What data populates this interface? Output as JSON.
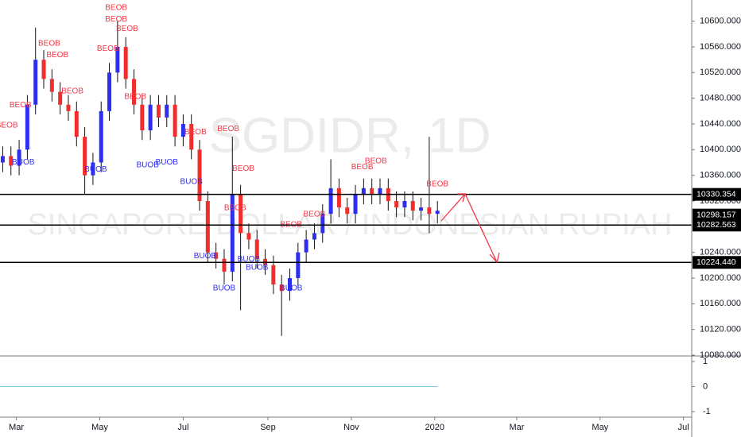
{
  "chart_data": {
    "type": "ohlc",
    "title": "SGDIDR, 1D",
    "subtitle": "SINGAPORE DOLLAR / INDONESIAN RUPIAH",
    "up_color": "#2e2ef0",
    "down_color": "#f02e2e",
    "x": [
      -10,
      -4,
      2,
      8,
      14,
      20,
      26,
      32,
      38,
      44,
      50,
      56,
      62,
      68,
      74,
      80,
      86,
      92,
      98,
      104,
      110,
      116,
      122,
      128,
      134,
      140,
      146,
      152,
      158,
      164,
      170,
      176,
      182,
      188,
      194,
      200,
      206,
      212,
      218,
      224,
      230,
      236,
      242,
      248,
      254,
      260,
      266,
      272,
      278,
      284,
      290,
      296,
      302,
      308
    ],
    "open": [
      10380,
      10390,
      10375,
      10400,
      10470,
      10540,
      10510,
      10490,
      10470,
      10460,
      10420,
      10360,
      10380,
      10460,
      10520,
      10560,
      10510,
      10470,
      10430,
      10470,
      10450,
      10470,
      10420,
      10440,
      10400,
      10320,
      10240,
      10230,
      10210,
      10330,
      10270,
      10260,
      10230,
      10220,
      10190,
      10180,
      10200,
      10240,
      10260,
      10270,
      10300,
      10340,
      10310,
      10300,
      10330,
      10340,
      10330,
      10340,
      10320,
      10310,
      10320,
      10305,
      10310,
      10300
    ],
    "high": [
      10405,
      10405,
      10415,
      10485,
      10590,
      10555,
      10525,
      10505,
      10485,
      10475,
      10435,
      10395,
      10475,
      10535,
      10600,
      10575,
      10525,
      10485,
      10485,
      10485,
      10485,
      10485,
      10455,
      10455,
      10415,
      10335,
      10255,
      10245,
      10420,
      10345,
      10285,
      10275,
      10245,
      10235,
      10205,
      10215,
      10255,
      10275,
      10285,
      10315,
      10385,
      10355,
      10325,
      10345,
      10355,
      10355,
      10355,
      10355,
      10335,
      10335,
      10335,
      10325,
      10420,
      10320
    ],
    "low": [
      10365,
      10360,
      10360,
      10385,
      10455,
      10495,
      10475,
      10455,
      10445,
      10405,
      10330,
      10345,
      10365,
      10445,
      10505,
      10495,
      10455,
      10415,
      10415,
      10435,
      10435,
      10405,
      10405,
      10385,
      10305,
      10225,
      10215,
      10190,
      10195,
      10150,
      10245,
      10215,
      10205,
      10175,
      10110,
      10165,
      10185,
      10225,
      10245,
      10255,
      10285,
      10295,
      10285,
      10285,
      10315,
      10315,
      10315,
      10305,
      10295,
      10295,
      10290,
      10290,
      10270,
      10285
    ],
    "close": [
      10390,
      10375,
      10400,
      10470,
      10540,
      10510,
      10490,
      10470,
      10460,
      10420,
      10360,
      10380,
      10460,
      10520,
      10560,
      10510,
      10470,
      10430,
      10470,
      10450,
      10470,
      10420,
      10440,
      10400,
      10320,
      10240,
      10230,
      10210,
      10330,
      10270,
      10260,
      10230,
      10220,
      10190,
      10180,
      10200,
      10240,
      10260,
      10270,
      10300,
      10340,
      10310,
      10300,
      10330,
      10340,
      10330,
      10340,
      10320,
      10310,
      10320,
      10305,
      10310,
      10300,
      10305
    ],
    "xlim": [
      -12,
      494
    ],
    "xticks": [
      {
        "value": 0,
        "label": "Mar"
      },
      {
        "value": 61,
        "label": "May"
      },
      {
        "value": 122,
        "label": "Jul"
      },
      {
        "value": 184,
        "label": "Sep"
      },
      {
        "value": 245,
        "label": "Nov"
      },
      {
        "value": 306,
        "label": "2020"
      },
      {
        "value": 366,
        "label": "Mar"
      },
      {
        "value": 427,
        "label": "May"
      },
      {
        "value": 488,
        "label": "Jul"
      }
    ],
    "ylim": [
      10080,
      10633
    ],
    "yticks": [
      {
        "value": 10600,
        "label": "10600.000"
      },
      {
        "value": 10560,
        "label": "10560.000"
      },
      {
        "value": 10520,
        "label": "10520.000"
      },
      {
        "value": 10480,
        "label": "10480.000"
      },
      {
        "value": 10440,
        "label": "10440.000"
      },
      {
        "value": 10400,
        "label": "10400.000"
      },
      {
        "value": 10360,
        "label": "10360.000"
      },
      {
        "value": 10320,
        "label": "10320.000"
      },
      {
        "value": 10280,
        "label": "10280.000"
      },
      {
        "value": 10240,
        "label": "10240.000"
      },
      {
        "value": 10200,
        "label": "10200.000"
      },
      {
        "value": 10160,
        "label": "10160.000"
      },
      {
        "value": 10120,
        "label": "10120.000"
      },
      {
        "value": 10080,
        "label": "10080.000"
      }
    ],
    "levels": [
      {
        "value": 10330.354,
        "label": "10330.354"
      },
      {
        "value": 10282.563,
        "label": "10282.563"
      },
      {
        "value": 10224.44,
        "label": "10224.440"
      }
    ],
    "last_price": {
      "value": 10298.157,
      "label": "10298.157"
    },
    "annotations": [
      {
        "text": "BEOB",
        "x": -7,
        "y": 10438,
        "color": "#f23645"
      },
      {
        "text": "BEOB",
        "x": 3,
        "y": 10469,
        "color": "#f23645"
      },
      {
        "text": "BEOB",
        "x": 24,
        "y": 10565,
        "color": "#f23645"
      },
      {
        "text": "BEOB",
        "x": 30,
        "y": 10547,
        "color": "#f23645"
      },
      {
        "text": "BEOB",
        "x": 41,
        "y": 10491,
        "color": "#f23645"
      },
      {
        "text": "BEOB",
        "x": 67,
        "y": 10557,
        "color": "#f23645"
      },
      {
        "text": "BEOB",
        "x": 73,
        "y": 10621,
        "color": "#f23645"
      },
      {
        "text": "BEOB",
        "x": 73,
        "y": 10603,
        "color": "#f23645"
      },
      {
        "text": "BEOB",
        "x": 81,
        "y": 10588,
        "color": "#f23645"
      },
      {
        "text": "BEOB",
        "x": 87,
        "y": 10482,
        "color": "#f23645"
      },
      {
        "text": "BEOB",
        "x": 131,
        "y": 10427,
        "color": "#f23645"
      },
      {
        "text": "BEOB",
        "x": 155,
        "y": 10432,
        "color": "#f23645"
      },
      {
        "text": "BEOB",
        "x": 166,
        "y": 10370,
        "color": "#f23645"
      },
      {
        "text": "BEOB",
        "x": 160,
        "y": 10309,
        "color": "#f23645"
      },
      {
        "text": "BEOB",
        "x": 201,
        "y": 10283,
        "color": "#f23645"
      },
      {
        "text": "BEOB",
        "x": 218,
        "y": 10299,
        "color": "#f23645"
      },
      {
        "text": "BEOB",
        "x": 253,
        "y": 10373,
        "color": "#f23645"
      },
      {
        "text": "BEOB",
        "x": 263,
        "y": 10382,
        "color": "#f23645"
      },
      {
        "text": "BEOB",
        "x": 308,
        "y": 10346,
        "color": "#f23645"
      },
      {
        "text": "BUOB",
        "x": 5,
        "y": 10380,
        "color": "#2e2ef0"
      },
      {
        "text": "BUOB",
        "x": 58,
        "y": 10369,
        "color": "#2e2ef0"
      },
      {
        "text": "BUOB",
        "x": 96,
        "y": 10376,
        "color": "#2e2ef0"
      },
      {
        "text": "BUOB",
        "x": 110,
        "y": 10380,
        "color": "#2e2ef0"
      },
      {
        "text": "BUOB",
        "x": 128,
        "y": 10350,
        "color": "#2e2ef0"
      },
      {
        "text": "BUOB",
        "x": 138,
        "y": 10234,
        "color": "#2e2ef0"
      },
      {
        "text": "BUOB",
        "x": 152,
        "y": 10184,
        "color": "#2e2ef0"
      },
      {
        "text": "BUOB",
        "x": 170,
        "y": 10229,
        "color": "#2e2ef0"
      },
      {
        "text": "BUOB",
        "x": 176,
        "y": 10216,
        "color": "#2e2ef0"
      },
      {
        "text": "BUOB",
        "x": 201,
        "y": 10184,
        "color": "#2e2ef0"
      }
    ],
    "indicator": {
      "x": [
        -12,
        308
      ],
      "values": [
        0,
        0
      ],
      "color": "#7ec8e3",
      "ylim": [
        -1.22,
        1.16
      ],
      "yticks": [
        1,
        0,
        -1
      ]
    }
  }
}
